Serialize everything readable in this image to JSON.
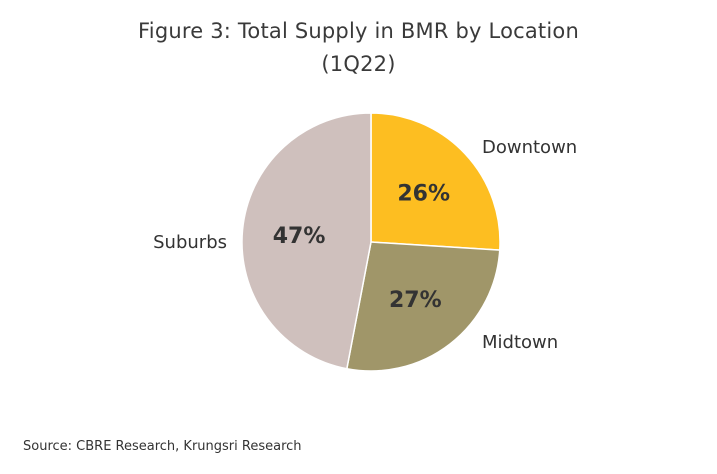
{
  "chart_data": {
    "type": "pie",
    "title": "Figure 3: Total Supply in BMR by Location",
    "subtitle": "(1Q22)",
    "slices": [
      {
        "label": "Downtown",
        "value": 26,
        "value_label": "26%",
        "color": "#fdbe21"
      },
      {
        "label": "Midtown",
        "value": 27,
        "value_label": "27%",
        "color": "#a09669"
      },
      {
        "label": "Suburbs",
        "value": 47,
        "value_label": "47%",
        "color": "#cfc0bd"
      }
    ],
    "legend": "none",
    "labels": "outside category names, inside percentages"
  },
  "source": "Source: CBRE Research, Krungsri Research"
}
